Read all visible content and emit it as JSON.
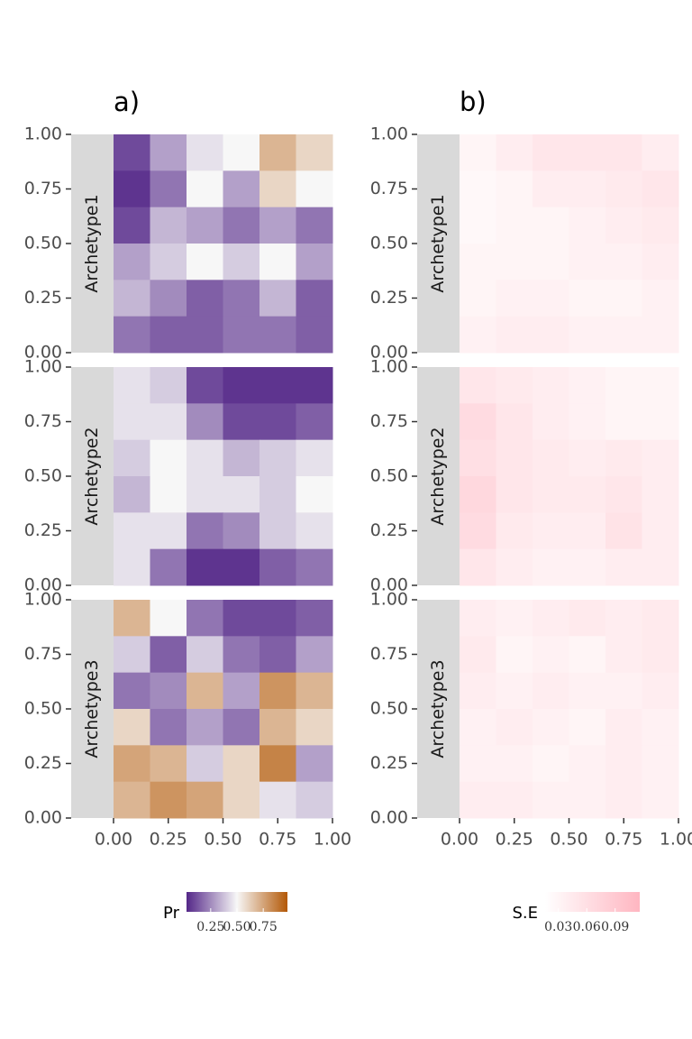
{
  "chart_data": [
    {
      "type": "heatmap",
      "title": "a)",
      "xlim": [
        0,
        1
      ],
      "ylim": [
        0,
        1
      ],
      "xticks": [
        {
          "value": 0,
          "label": "0.00"
        },
        {
          "value": 0.25,
          "label": "0.25"
        },
        {
          "value": 0.5,
          "label": "0.50"
        },
        {
          "value": 0.75,
          "label": "0.75"
        },
        {
          "value": 1,
          "label": "1.00"
        }
      ],
      "yticks": [
        {
          "value": 0,
          "label": "0.00"
        },
        {
          "value": 0.25,
          "label": "0.25"
        },
        {
          "value": 0.5,
          "label": "0.50"
        },
        {
          "value": 0.75,
          "label": "0.75"
        },
        {
          "value": 1,
          "label": "1.00"
        }
      ],
      "panels": [
        {
          "label": "Archetype1",
          "z": [
            [
              0.1,
              0.3,
              0.45,
              0.5,
              0.7,
              0.6
            ],
            [
              0.05,
              0.2,
              0.5,
              0.3,
              0.6,
              0.5
            ],
            [
              0.1,
              0.35,
              0.3,
              0.2,
              0.3,
              0.2
            ],
            [
              0.3,
              0.4,
              0.5,
              0.4,
              0.5,
              0.3
            ],
            [
              0.35,
              0.25,
              0.15,
              0.2,
              0.35,
              0.15
            ],
            [
              0.2,
              0.15,
              0.15,
              0.2,
              0.2,
              0.15
            ]
          ]
        },
        {
          "label": "Archetype2",
          "z": [
            [
              0.45,
              0.4,
              0.1,
              0.05,
              0.05,
              0.05
            ],
            [
              0.45,
              0.45,
              0.25,
              0.1,
              0.1,
              0.15
            ],
            [
              0.4,
              0.5,
              0.45,
              0.35,
              0.4,
              0.45
            ],
            [
              0.35,
              0.5,
              0.45,
              0.45,
              0.4,
              0.5
            ],
            [
              0.45,
              0.45,
              0.2,
              0.25,
              0.4,
              0.45
            ],
            [
              0.45,
              0.2,
              0.05,
              0.05,
              0.15,
              0.2
            ]
          ]
        },
        {
          "label": "Archetype3",
          "z": [
            [
              0.7,
              0.5,
              0.2,
              0.1,
              0.1,
              0.15
            ],
            [
              0.4,
              0.15,
              0.4,
              0.2,
              0.15,
              0.3
            ],
            [
              0.2,
              0.25,
              0.7,
              0.3,
              0.8,
              0.7
            ],
            [
              0.6,
              0.2,
              0.3,
              0.2,
              0.7,
              0.6
            ],
            [
              0.75,
              0.7,
              0.4,
              0.6,
              0.85,
              0.3
            ],
            [
              0.7,
              0.8,
              0.75,
              0.6,
              0.45,
              0.4
            ]
          ]
        }
      ],
      "legend_title": "Pr",
      "clim": [
        0.02,
        0.98
      ],
      "cticks": [
        {
          "value": 0.25,
          "label": "0.25"
        },
        {
          "value": 0.5,
          "label": "0.50"
        },
        {
          "value": 0.75,
          "label": "0.75"
        }
      ],
      "colors": [
        "#542788",
        "#f7f7f7",
        "#b35806"
      ]
    },
    {
      "type": "heatmap",
      "title": "b)",
      "xlim": [
        0,
        1
      ],
      "ylim": [
        0,
        1
      ],
      "xticks": [
        {
          "value": 0,
          "label": "0.00"
        },
        {
          "value": 0.25,
          "label": "0.25"
        },
        {
          "value": 0.5,
          "label": "0.50"
        },
        {
          "value": 0.75,
          "label": "0.75"
        },
        {
          "value": 1,
          "label": "1.00"
        }
      ],
      "yticks": [
        {
          "value": 0,
          "label": "0.00"
        },
        {
          "value": 0.25,
          "label": "0.25"
        },
        {
          "value": 0.5,
          "label": "0.50"
        },
        {
          "value": 0.75,
          "label": "0.75"
        },
        {
          "value": 1,
          "label": "1.00"
        }
      ],
      "panels": [
        {
          "label": "Archetype1",
          "z": [
            [
              0.03,
              0.04,
              0.05,
              0.05,
              0.05,
              0.04
            ],
            [
              0.025,
              0.03,
              0.04,
              0.04,
              0.045,
              0.05
            ],
            [
              0.025,
              0.03,
              0.03,
              0.035,
              0.04,
              0.045
            ],
            [
              0.03,
              0.03,
              0.03,
              0.035,
              0.035,
              0.04
            ],
            [
              0.03,
              0.035,
              0.035,
              0.03,
              0.03,
              0.035
            ],
            [
              0.035,
              0.04,
              0.04,
              0.035,
              0.035,
              0.035
            ]
          ]
        },
        {
          "label": "Archetype2",
          "z": [
            [
              0.05,
              0.045,
              0.04,
              0.035,
              0.03,
              0.03
            ],
            [
              0.065,
              0.05,
              0.04,
              0.035,
              0.03,
              0.03
            ],
            [
              0.06,
              0.05,
              0.045,
              0.04,
              0.045,
              0.04
            ],
            [
              0.07,
              0.05,
              0.045,
              0.045,
              0.05,
              0.04
            ],
            [
              0.065,
              0.045,
              0.04,
              0.04,
              0.055,
              0.04
            ],
            [
              0.05,
              0.04,
              0.035,
              0.035,
              0.04,
              0.04
            ]
          ]
        },
        {
          "label": "Archetype3",
          "z": [
            [
              0.04,
              0.035,
              0.04,
              0.045,
              0.04,
              0.045
            ],
            [
              0.045,
              0.03,
              0.035,
              0.03,
              0.04,
              0.045
            ],
            [
              0.04,
              0.035,
              0.04,
              0.035,
              0.035,
              0.04
            ],
            [
              0.035,
              0.04,
              0.035,
              0.03,
              0.04,
              0.035
            ],
            [
              0.035,
              0.035,
              0.03,
              0.035,
              0.04,
              0.035
            ],
            [
              0.04,
              0.04,
              0.035,
              0.035,
              0.04,
              0.035
            ]
          ]
        }
      ],
      "legend_title": "S.E",
      "clim": [
        0.016,
        0.116
      ],
      "cticks": [
        {
          "value": 0.03,
          "label": "0.03"
        },
        {
          "value": 0.06,
          "label": "0.06"
        },
        {
          "value": 0.09,
          "label": "0.09"
        }
      ],
      "colors": [
        "#ffffff",
        "#ffb6c1"
      ]
    }
  ]
}
